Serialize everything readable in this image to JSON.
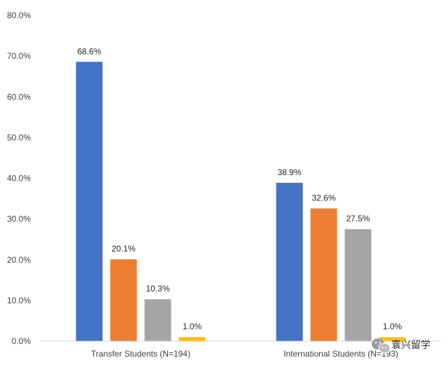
{
  "chart_data": {
    "type": "bar",
    "categories": [
      "Transfer Students (N=194)",
      "International Students (N=193)"
    ],
    "series": [
      {
        "values": [
          68.6,
          38.9
        ],
        "labels": [
          "68.6%",
          "38.9%"
        ],
        "color": "#4472c4"
      },
      {
        "values": [
          20.1,
          32.6
        ],
        "labels": [
          "20.1%",
          "32.6%"
        ],
        "color": "#ed7d31"
      },
      {
        "values": [
          10.3,
          27.5
        ],
        "labels": [
          "10.3%",
          "27.5%"
        ],
        "color": "#a5a5a5"
      },
      {
        "values": [
          1.0,
          1.0
        ],
        "labels": [
          "1.0%",
          "1.0%"
        ],
        "color": "#ffc000"
      }
    ],
    "ylim": [
      0,
      80
    ],
    "yticks": [
      0,
      10,
      20,
      30,
      40,
      50,
      60,
      70,
      80
    ],
    "ytick_labels": [
      "0.0%",
      "10.0%",
      "20.0%",
      "30.0%",
      "40.0%",
      "50.0%",
      "60.0%",
      "70.0%",
      "80.0%"
    ],
    "grid": false,
    "legend": "none",
    "title": "",
    "xlabel": "",
    "ylabel": ""
  },
  "watermark": {
    "text": "寰兴留学",
    "icon": "wechat-icon"
  }
}
